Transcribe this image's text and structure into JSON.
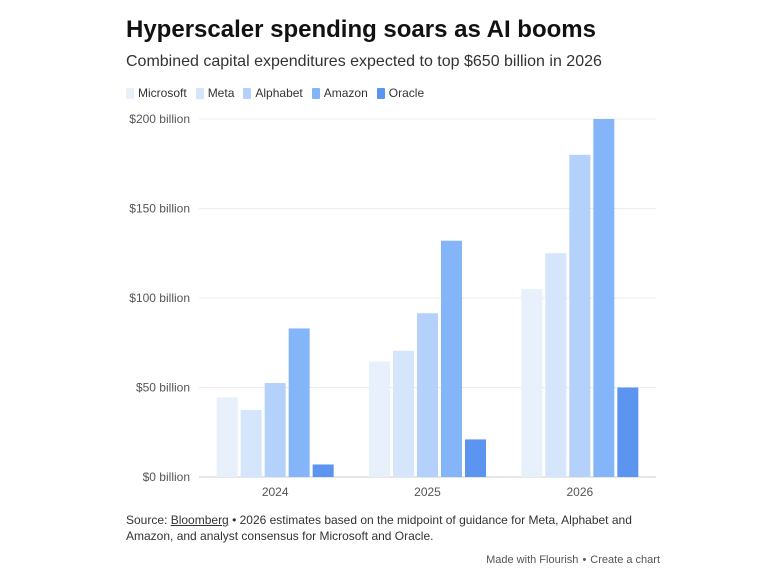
{
  "chart_data": {
    "type": "bar",
    "title": "Hyperscaler spending soars as AI booms",
    "subtitle": "Combined capital expenditures expected to top $650 billion in 2026",
    "categories": [
      "2024",
      "2025",
      "2026"
    ],
    "series": [
      {
        "name": "Microsoft",
        "color": "#e8f0fc",
        "values": [
          44.5,
          64.5,
          105
        ]
      },
      {
        "name": "Meta",
        "color": "#d5e5fc",
        "values": [
          37.5,
          70.5,
          125
        ]
      },
      {
        "name": "Alphabet",
        "color": "#b3d1fb",
        "values": [
          52.5,
          91.5,
          180
        ]
      },
      {
        "name": "Amazon",
        "color": "#84b5f8",
        "values": [
          83,
          132,
          200
        ]
      },
      {
        "name": "Oracle",
        "color": "#5b95ef",
        "values": [
          7,
          21,
          50
        ]
      }
    ],
    "ylim": [
      0,
      200
    ],
    "yticks": [
      {
        "value": 0,
        "label": "$0 billion"
      },
      {
        "value": 50,
        "label": "$50 billion"
      },
      {
        "value": 100,
        "label": "$100 billion"
      },
      {
        "value": 150,
        "label": "$150 billion"
      },
      {
        "value": 200,
        "label": "$200 billion"
      }
    ],
    "grid": true,
    "legend": "top-left"
  },
  "source": {
    "prefix": "Source: ",
    "link_text": "Bloomberg",
    "note": " • 2026 estimates based on the midpoint of guidance for Meta, Alphabet and Amazon, and analyst consensus for Microsoft and Oracle."
  },
  "footer": {
    "made_with": "Made with Flourish",
    "separator": "•",
    "create": "Create a chart"
  }
}
